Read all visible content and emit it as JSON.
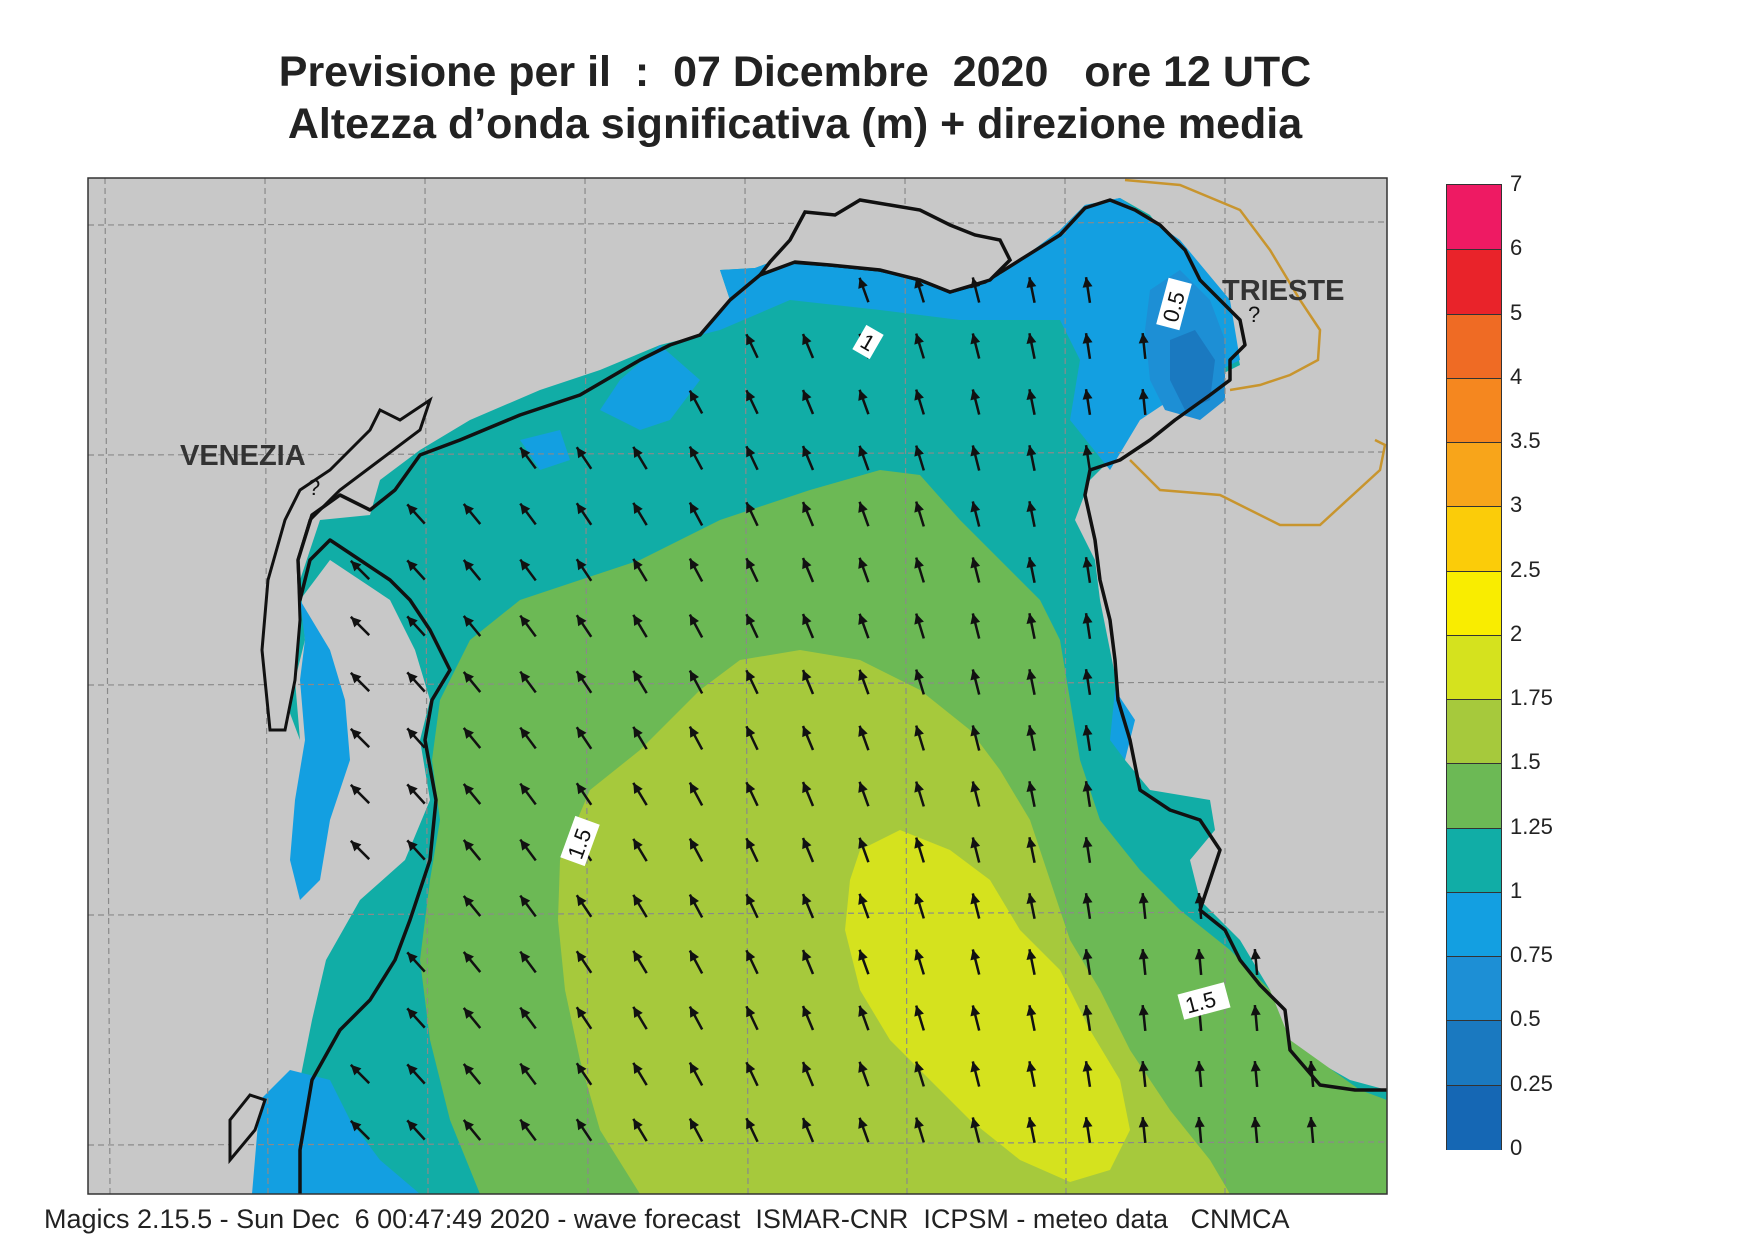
{
  "title": {
    "line1": "Previsione per il  :  07 Dicembre  2020   ore 12 UTC",
    "line2": "Altezza d’onda significativa (m) + direzione media"
  },
  "cities": [
    {
      "name": "VENEZIA"
    },
    {
      "name": "TRIESTE"
    }
  ],
  "contour_labels": [
    "1",
    "0.5",
    "1.5",
    "1.5"
  ],
  "legend": {
    "labels": [
      "7",
      "6",
      "5",
      "4",
      "3.5",
      "3",
      "2.5",
      "2",
      "1.75",
      "1.5",
      "1.25",
      "1",
      "0.75",
      "0.5",
      "0.25",
      "0"
    ],
    "colors": [
      "#ee1a63",
      "#e9232a",
      "#ef6b24",
      "#f5871f",
      "#f8a51a",
      "#fbcc09",
      "#f9ed00",
      "#d5e21e",
      "#a6c93c",
      "#6cb955",
      "#11ada6",
      "#139fe1",
      "#1d8fd5",
      "#1a79c0",
      "#1567b4"
    ]
  },
  "colors": {
    "land": "#c8c8c8",
    "coast": "#111111",
    "border": "#c8952e",
    "grid": "#8a8a8a"
  },
  "footer": "Magics 2.15.5 - Sun Dec  6 00:47:49 2020 - wave forecast  ISMAR-CNR  ICPSM - meteo data   CNMCA"
}
